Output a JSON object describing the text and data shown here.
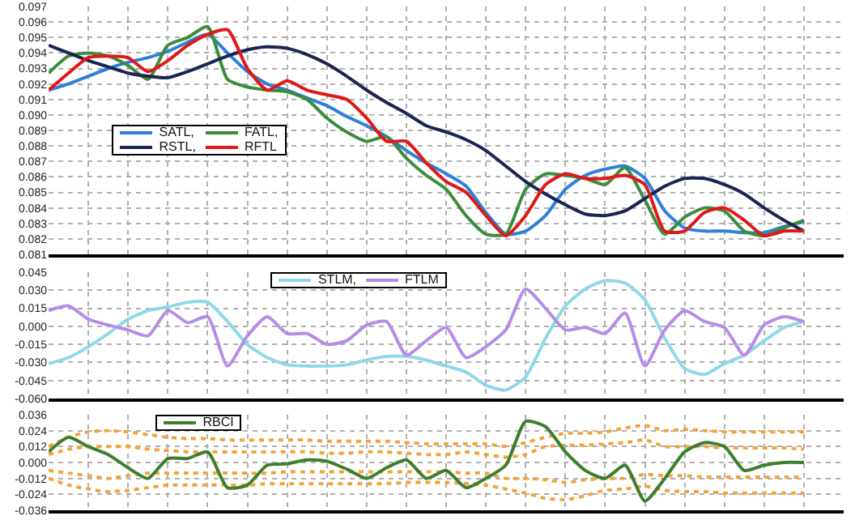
{
  "chart_data": [
    {
      "type": "line",
      "categories": [
        null,
        null,
        null,
        null,
        null,
        null,
        null,
        null,
        null,
        null,
        null,
        null,
        null,
        null,
        null,
        null,
        null,
        null,
        null,
        null,
        null,
        null,
        null,
        null,
        null,
        null,
        null,
        null,
        null,
        null,
        null,
        null,
        null,
        null,
        null,
        null,
        null,
        null,
        null,
        null,
        null
      ],
      "series": [
        {
          "name": "SATL,",
          "color": "#2f80d8",
          "values": [
            0.0916,
            0.092,
            0.0925,
            0.093,
            0.0934,
            0.0937,
            0.0941,
            0.0947,
            0.0952,
            0.094,
            0.0928,
            0.092,
            0.0916,
            0.0911,
            0.0906,
            0.0899,
            0.0893,
            0.0886,
            0.0877,
            0.0869,
            0.0862,
            0.0854,
            0.0837,
            0.0823,
            0.0825,
            0.0835,
            0.0852,
            0.0861,
            0.0865,
            0.0867,
            0.0859,
            0.0838,
            0.0827,
            0.0825,
            0.0825,
            0.0824,
            0.0824,
            0.0828,
            0.0831,
            null,
            null
          ]
        },
        {
          "name": "FATL,",
          "color": "#3c8c3c",
          "values": [
            0.0927,
            0.0938,
            0.094,
            0.0938,
            0.0932,
            0.0923,
            0.0945,
            0.095,
            0.0957,
            0.0923,
            0.0918,
            0.0916,
            0.0915,
            0.091,
            0.0898,
            0.0889,
            0.0883,
            0.0886,
            0.0872,
            0.0861,
            0.0852,
            0.0835,
            0.0823,
            0.0823,
            0.0852,
            0.0862,
            0.0861,
            0.0859,
            0.0855,
            0.0866,
            0.0845,
            0.0823,
            0.0834,
            0.084,
            0.0838,
            0.0825,
            0.0822,
            0.0827,
            0.0832,
            null,
            null
          ]
        },
        {
          "name": "RSTL,",
          "color": "#1b2452",
          "values": [
            0.0945,
            0.094,
            0.0935,
            0.0931,
            0.0927,
            0.0925,
            0.0924,
            0.0928,
            0.0933,
            0.0938,
            0.0942,
            0.0944,
            0.0943,
            0.0939,
            0.0933,
            0.0925,
            0.0916,
            0.0908,
            0.0901,
            0.0893,
            0.0889,
            0.0884,
            0.0877,
            0.0867,
            0.0857,
            0.0849,
            0.0842,
            0.0836,
            0.0835,
            0.0838,
            0.0846,
            0.0854,
            0.0859,
            0.0859,
            0.0855,
            0.0849,
            0.084,
            0.0832,
            0.0825,
            null,
            null
          ]
        },
        {
          "name": "RFTL",
          "color": "#e01818",
          "values": [
            0.0916,
            0.0927,
            0.0937,
            0.0938,
            0.0937,
            0.0928,
            0.0935,
            0.0945,
            0.0952,
            0.0955,
            0.093,
            0.0916,
            0.0922,
            0.0916,
            0.0913,
            0.091,
            0.0898,
            0.0883,
            0.0883,
            0.0869,
            0.0857,
            0.085,
            0.0835,
            0.0822,
            0.0835,
            0.0855,
            0.0862,
            0.0859,
            0.0859,
            0.0861,
            0.0855,
            0.0825,
            0.0825,
            0.0837,
            0.084,
            0.0832,
            0.0822,
            0.0825,
            0.0825,
            null,
            null
          ]
        }
      ],
      "ylim": [
        0.081,
        0.097
      ],
      "yticks": [
        0.081,
        0.082,
        0.083,
        0.084,
        0.085,
        0.086,
        0.087,
        0.088,
        0.089,
        {
          "value": 0.09,
          "label": "0.090"
        },
        0.091,
        0.092,
        0.093,
        0.094,
        0.095,
        0.096,
        0.097
      ],
      "grid": true,
      "legend": "left",
      "tick_labels": "y"
    },
    {
      "type": "line",
      "categories": [
        null,
        null,
        null,
        null,
        null,
        null,
        null,
        null,
        null,
        null,
        null,
        null,
        null,
        null,
        null,
        null,
        null,
        null,
        null,
        null,
        null,
        null,
        null,
        null,
        null,
        null,
        null,
        null,
        null,
        null,
        null,
        null,
        null,
        null,
        null,
        null,
        null,
        null,
        null,
        null,
        null
      ],
      "series": [
        {
          "name": "STLM,",
          "color": "#8fd8ea",
          "values": [
            -0.031,
            -0.026,
            -0.017,
            -0.006,
            0.006,
            0.013,
            0.016,
            0.02,
            0.02,
            0.004,
            -0.015,
            -0.026,
            -0.032,
            -0.033,
            -0.033,
            -0.032,
            -0.028,
            -0.025,
            -0.025,
            -0.028,
            -0.033,
            -0.038,
            -0.049,
            -0.053,
            -0.042,
            -0.01,
            0.017,
            0.031,
            0.038,
            0.036,
            0.022,
            -0.01,
            -0.035,
            -0.04,
            -0.031,
            -0.024,
            -0.012,
            -0.001,
            0.004,
            null,
            null
          ]
        },
        {
          "name": "FTLM",
          "color": "#b68ce8",
          "values": [
            0.013,
            0.017,
            0.006,
            0.001,
            -0.003,
            -0.008,
            0.013,
            0.003,
            0.008,
            -0.033,
            -0.008,
            0.008,
            -0.006,
            -0.006,
            -0.015,
            -0.012,
            0.001,
            0.004,
            -0.024,
            -0.012,
            -0.001,
            -0.026,
            -0.017,
            -0.003,
            0.031,
            0.015,
            -0.003,
            -0.001,
            -0.006,
            0.011,
            -0.033,
            -0.003,
            0.013,
            0.004,
            -0.001,
            -0.024,
            0.001,
            0.008,
            0.004,
            null,
            null
          ]
        }
      ],
      "ylim": [
        -0.06,
        0.045
      ],
      "yticks": [
        0.045,
        {
          "value": 0.03,
          "label": "0.030"
        },
        0.015,
        {
          "value": 0,
          "label": "0.000"
        },
        -0.015,
        {
          "value": -0.03,
          "label": "-0.030"
        },
        -0.045,
        {
          "value": -0.06,
          "label": "-0.060"
        }
      ],
      "grid": true,
      "legend": "top",
      "tick_labels": "y"
    },
    {
      "type": "line",
      "categories": [
        null,
        null,
        null,
        null,
        null,
        null,
        null,
        null,
        null,
        null,
        null,
        null,
        null,
        null,
        null,
        null,
        null,
        null,
        null,
        null,
        null,
        null,
        null,
        null,
        null,
        null,
        null,
        null,
        null,
        null,
        null,
        null,
        null,
        null,
        null,
        null,
        null,
        null,
        null,
        null,
        null
      ],
      "series": [
        {
          "color": "#f2a43a",
          "line_style": "dotted",
          "values": [
            0.012,
            0.019,
            0.023,
            0.024,
            0.023,
            0.021,
            0.019,
            0.018,
            0.018,
            0.017,
            0.017,
            0.017,
            0.017,
            0.017,
            0.016,
            0.016,
            0.016,
            0.016,
            0.015,
            0.014,
            0.014,
            0.014,
            0.014,
            0.012,
            0.015,
            0.019,
            0.022,
            0.022,
            0.023,
            0.026,
            0.028,
            0.024,
            0.025,
            0.024,
            0.023,
            0.023,
            0.023,
            0.023,
            0.023,
            null,
            null
          ]
        },
        {
          "color": "#f2a43a",
          "line_style": "dotted",
          "values": [
            0.006,
            0.01,
            0.012,
            0.012,
            0.012,
            0.01,
            0.009,
            0.008,
            0.008,
            0.008,
            0.008,
            0.008,
            0.008,
            0.008,
            0.007,
            0.007,
            0.008,
            0.008,
            0.007,
            0.006,
            0.006,
            0.008,
            0.006,
            0.004,
            0.006,
            0.012,
            0.013,
            0.013,
            0.014,
            0.015,
            0.017,
            0.012,
            0.012,
            0.012,
            0.011,
            0.011,
            0.011,
            0.011,
            0.01,
            null,
            null
          ]
        },
        {
          "color": "#f2a43a",
          "line_style": "dotted",
          "values": [
            -0.006,
            -0.008,
            -0.01,
            -0.012,
            -0.01,
            -0.008,
            -0.008,
            -0.008,
            -0.008,
            -0.008,
            -0.008,
            -0.008,
            -0.007,
            -0.007,
            -0.007,
            -0.007,
            -0.007,
            -0.007,
            -0.007,
            -0.007,
            -0.007,
            -0.008,
            -0.008,
            -0.012,
            -0.012,
            -0.013,
            -0.015,
            -0.013,
            -0.012,
            -0.012,
            -0.009,
            -0.01,
            -0.01,
            -0.011,
            -0.011,
            -0.011,
            -0.011,
            -0.011,
            -0.011,
            null,
            null
          ]
        },
        {
          "color": "#f2a43a",
          "line_style": "dotted",
          "values": [
            -0.012,
            -0.017,
            -0.02,
            -0.022,
            -0.021,
            -0.019,
            -0.017,
            -0.017,
            -0.017,
            -0.017,
            -0.017,
            -0.016,
            -0.016,
            -0.016,
            -0.016,
            -0.016,
            -0.016,
            -0.016,
            -0.015,
            -0.015,
            -0.015,
            -0.016,
            -0.017,
            -0.02,
            -0.023,
            -0.027,
            -0.028,
            -0.025,
            -0.021,
            -0.02,
            -0.018,
            -0.021,
            -0.022,
            -0.022,
            -0.023,
            -0.023,
            -0.023,
            -0.023,
            -0.023,
            null,
            null
          ]
        },
        {
          "name": "RBCI",
          "color": "#3d7f2c",
          "values": [
            0.008,
            0.019,
            0.012,
            0.006,
            -0.004,
            -0.012,
            0.003,
            0.003,
            0.008,
            -0.019,
            -0.017,
            -0.002,
            -0.001,
            0.002,
            0.001,
            -0.005,
            -0.012,
            -0.004,
            0.002,
            -0.012,
            -0.006,
            -0.019,
            -0.012,
            -0.002,
            0.031,
            0.027,
            0.008,
            -0.006,
            -0.012,
            -0.002,
            -0.029,
            -0.012,
            0.008,
            0.015,
            0.012,
            -0.006,
            -0.002,
            0,
            0,
            null,
            null
          ]
        }
      ],
      "ylim": [
        -0.036,
        0.036
      ],
      "yticks": [
        0.036,
        0.024,
        0.012,
        {
          "value": 0,
          "label": "0.000"
        },
        -0.012,
        -0.024,
        -0.036
      ],
      "grid": true,
      "legend": "top left",
      "tick_labels": "y"
    }
  ]
}
